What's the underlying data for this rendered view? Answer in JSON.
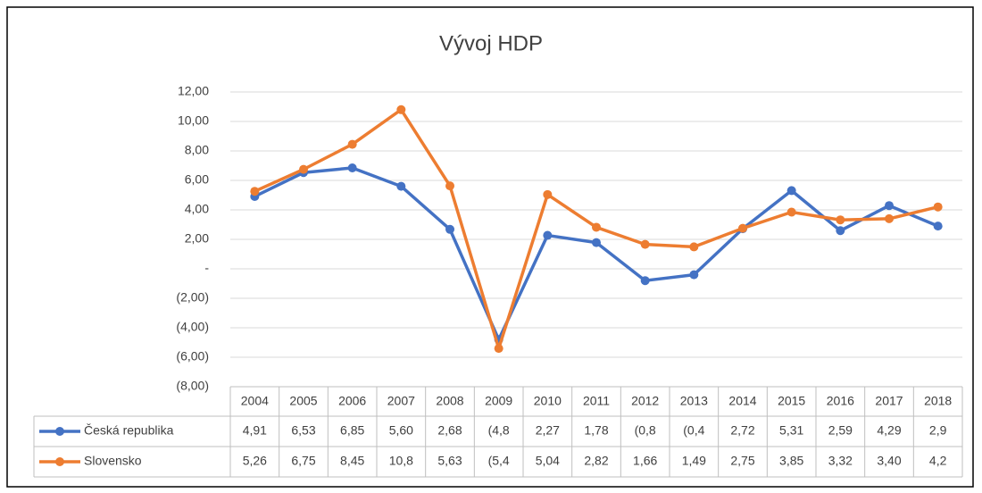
{
  "chart_data": {
    "type": "line",
    "title": "Vývoj HDP",
    "categories": [
      "2004",
      "2005",
      "2006",
      "2007",
      "2008",
      "2009",
      "2010",
      "2011",
      "2012",
      "2013",
      "2014",
      "2015",
      "2016",
      "2017",
      "2018"
    ],
    "series": [
      {
        "name": "Česká republika",
        "color": "#4472c4",
        "values": [
          4.91,
          6.53,
          6.85,
          5.6,
          2.68,
          -4.8,
          2.27,
          1.78,
          -0.8,
          -0.4,
          2.72,
          5.31,
          2.59,
          4.29,
          2.9
        ],
        "value_labels": [
          "4,91",
          "6,53",
          "6,85",
          "5,60",
          "2,68",
          "(4,8",
          "2,27",
          "1,78",
          "(0,8",
          "(0,4",
          "2,72",
          "5,31",
          "2,59",
          "4,29",
          "2,9"
        ]
      },
      {
        "name": "Slovensko",
        "color": "#ed7d31",
        "values": [
          5.26,
          6.75,
          8.45,
          10.8,
          5.63,
          -5.4,
          5.04,
          2.82,
          1.66,
          1.49,
          2.75,
          3.85,
          3.32,
          3.4,
          4.2
        ],
        "value_labels": [
          "5,26",
          "6,75",
          "8,45",
          "10,8",
          "5,63",
          "(5,4",
          "5,04",
          "2,82",
          "1,66",
          "1,49",
          "2,75",
          "3,85",
          "3,32",
          "3,40",
          "4,2"
        ]
      }
    ],
    "ylim": [
      -8,
      12
    ],
    "yticks": [
      {
        "value": 12,
        "label": "12,00"
      },
      {
        "value": 10,
        "label": "10,00"
      },
      {
        "value": 8,
        "label": "8,00"
      },
      {
        "value": 6,
        "label": "6,00"
      },
      {
        "value": 4,
        "label": "4,00"
      },
      {
        "value": 2,
        "label": "2,00"
      },
      {
        "value": 0,
        "label": "-"
      },
      {
        "value": -2,
        "label": "(2,00)"
      },
      {
        "value": -4,
        "label": "(4,00)"
      },
      {
        "value": -6,
        "label": "(6,00)"
      },
      {
        "value": -8,
        "label": "(8,00)"
      }
    ],
    "grid": true
  }
}
